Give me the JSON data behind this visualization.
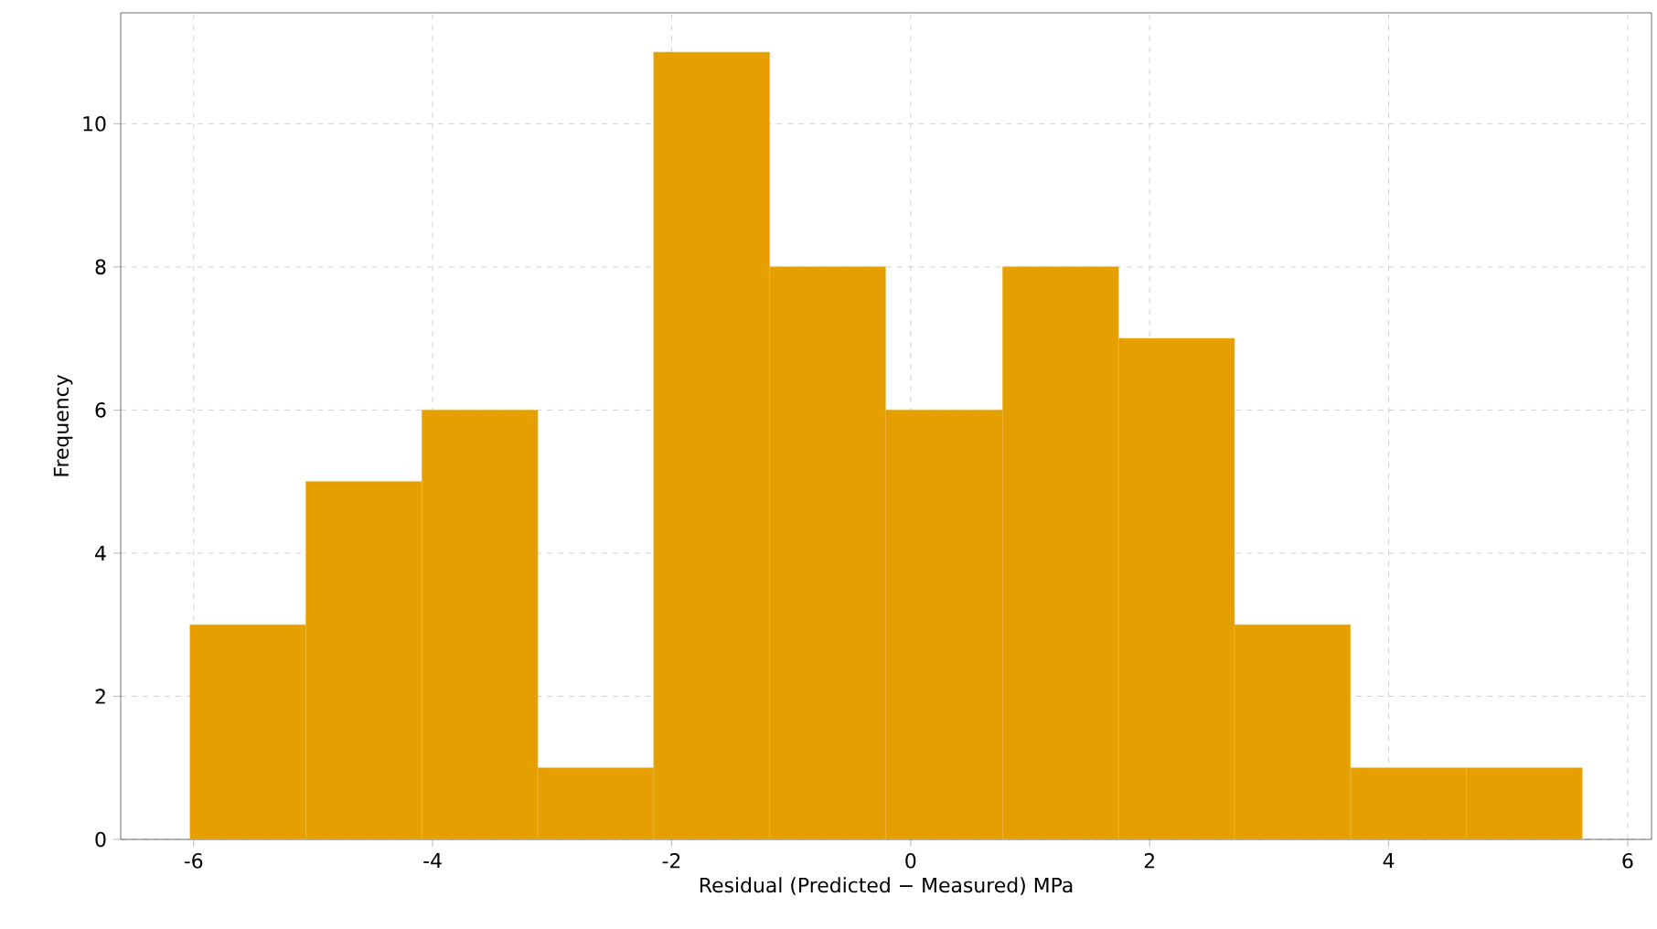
{
  "chart_data": {
    "type": "histogram",
    "xlabel": "Residual (Predicted − Measured) MPa",
    "ylabel": "Frequency",
    "bins": [
      -6.03,
      -5.06,
      -4.09,
      -3.12,
      -2.15,
      -1.18,
      -0.21,
      0.77,
      1.74,
      2.71,
      3.68,
      4.65,
      5.62
    ],
    "values": [
      3,
      5,
      6,
      1,
      11,
      8,
      6,
      8,
      7,
      3,
      1,
      1
    ],
    "color": "#e5a000",
    "xlim": [
      -6.61,
      6.2
    ],
    "ylim": [
      0,
      11.55
    ],
    "xticks": [
      -6,
      -4,
      -2,
      0,
      2,
      4,
      6
    ],
    "yticks": [
      0,
      2,
      4,
      6,
      8,
      10
    ],
    "grid": true
  }
}
